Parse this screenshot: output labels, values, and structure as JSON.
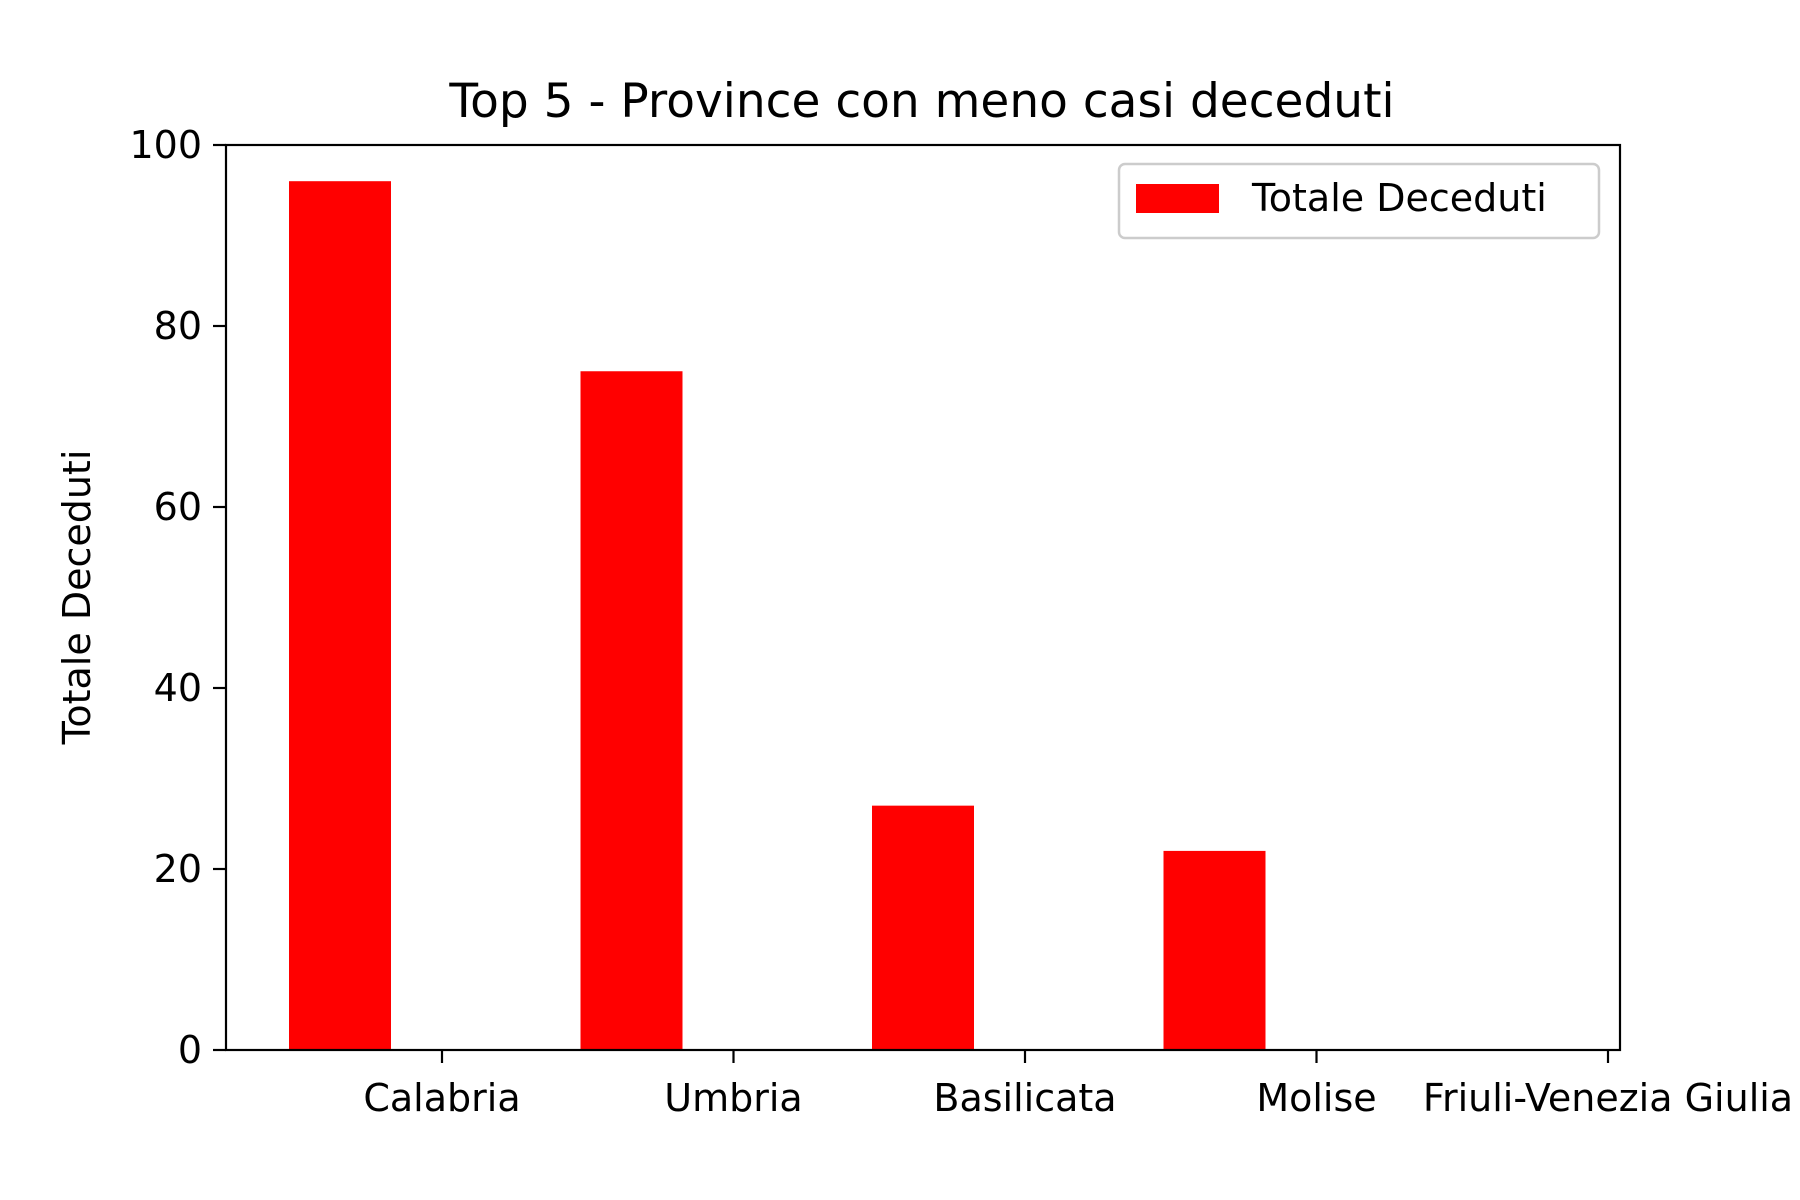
{
  "chart_data": {
    "type": "bar",
    "title": "Top 5 - Province con meno casi deceduti",
    "xlabel": "",
    "ylabel": "Totale Deceduti",
    "categories": [
      "Calabria",
      "Umbria",
      "Basilicata",
      "Molise",
      "Friuli-Venezia Giulia"
    ],
    "series": [
      {
        "name": "Totale Deceduti",
        "values": [
          96,
          75,
          27,
          22,
          0
        ],
        "color": "#ff0000"
      }
    ],
    "ylim": [
      0,
      100
    ],
    "yticks": [
      "0",
      "20",
      "40",
      "60",
      "80",
      "100"
    ],
    "grid": false,
    "legend_position": "top-right"
  }
}
